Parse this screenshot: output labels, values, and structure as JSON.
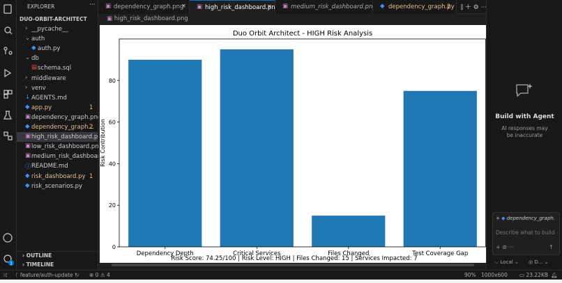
{
  "tabs": [
    {
      "label": "dependency_graph.png"
    },
    {
      "label": "high_risk_dashboard.png"
    },
    {
      "label": "medium_risk_dashboard.png"
    },
    {
      "label": "dependency_graph.py",
      "badge": 2
    }
  ],
  "breadcrumb": "high_risk_dashboard.png",
  "activity_badge": 1,
  "sidebar": {
    "header": "EXPLORER",
    "project": "DUO-ORBIT-ARCHITECT",
    "items": [
      {
        "label": "__pycache__",
        "depth": 1,
        "folder": "closed"
      },
      {
        "label": "auth",
        "depth": 1,
        "folder": "open"
      },
      {
        "label": "auth.py",
        "depth": 2
      },
      {
        "label": "db",
        "depth": 1,
        "folder": "open"
      },
      {
        "label": "schema.sql",
        "depth": 2
      },
      {
        "label": "middleware",
        "depth": 1,
        "folder": "closed"
      },
      {
        "label": "venv",
        "depth": 1,
        "folder": "closed"
      },
      {
        "label": "AGENTS.md",
        "depth": 1
      },
      {
        "label": "app.py",
        "depth": 1,
        "badge": 1
      },
      {
        "label": "dependency_graph.png",
        "depth": 1
      },
      {
        "label": "dependency_graph...",
        "depth": 1,
        "badge": 2
      },
      {
        "label": "high_risk_dashboard.png",
        "depth": 1,
        "selected": true
      },
      {
        "label": "low_risk_dashboard.png",
        "depth": 1
      },
      {
        "label": "medium_risk_dashboard...",
        "depth": 1
      },
      {
        "label": "README.md",
        "depth": 1
      },
      {
        "label": "risk_dashboard.py",
        "depth": 1,
        "badge": 1
      },
      {
        "label": "risk_scenarios.py",
        "depth": 1
      }
    ],
    "outline": "OUTLINE",
    "timeline": "TIMELINE"
  },
  "preview": {
    "chart": {
      "type": "bar",
      "title": "Duo Orbit Architect - HIGH Risk Analysis",
      "y_label": "Risk Contribution",
      "categories": [
        "Dependency Depth",
        "Critical Services",
        "Files Changed",
        "Test Coverage Gap"
      ],
      "values": [
        90,
        95,
        15,
        75
      ],
      "color": "#1f77b4",
      "ylim": [
        0,
        100
      ],
      "yticks": [
        0,
        20,
        40,
        60,
        80
      ]
    },
    "footer": "Risk Score: 74.25/100 | Risk Level: HIGH | Files Changed: 15 | Services Impacted: 7"
  },
  "agent": {
    "title": "Build with Agent",
    "subtitle_1": "AI responses may",
    "subtitle_2": "be inaccurate",
    "context": "dependency_graph.",
    "placeholder": "Describe what to build",
    "mode": "Local",
    "model": "D..."
  },
  "status": {
    "branch": "feature/auth-update",
    "errors": 0,
    "warnings": 4,
    "zoom": "90%",
    "dimensions": "1000x600",
    "size": "23.22KB"
  }
}
